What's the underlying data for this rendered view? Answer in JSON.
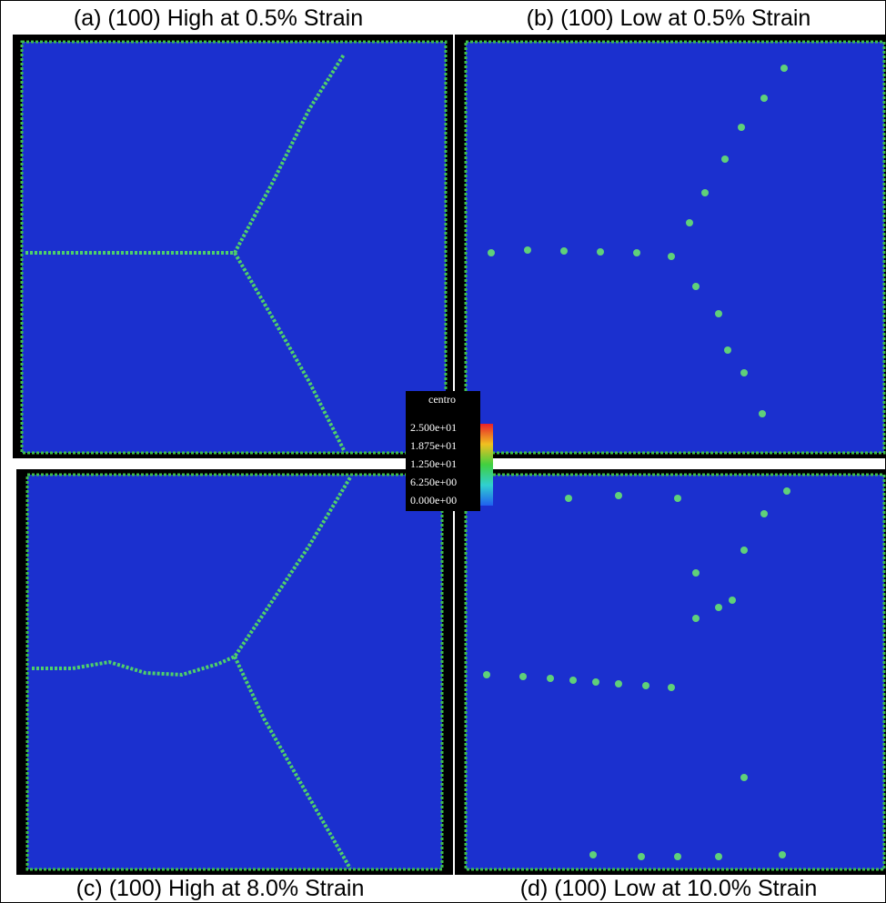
{
  "panels": [
    {
      "caption": "(a) (100) High at 0.5% Strain"
    },
    {
      "caption": "(b) (100) Low at 0.5% Strain"
    },
    {
      "caption": "(c) (100) High at 8.0% Strain"
    },
    {
      "caption": "(d) (100) Low at 10.0% Strain"
    }
  ],
  "colorbar": {
    "title": "centro",
    "labels": [
      "2.500e+01",
      "1.875e+01",
      "1.250e+01",
      "6.250e+00",
      "0.000e+00"
    ]
  }
}
